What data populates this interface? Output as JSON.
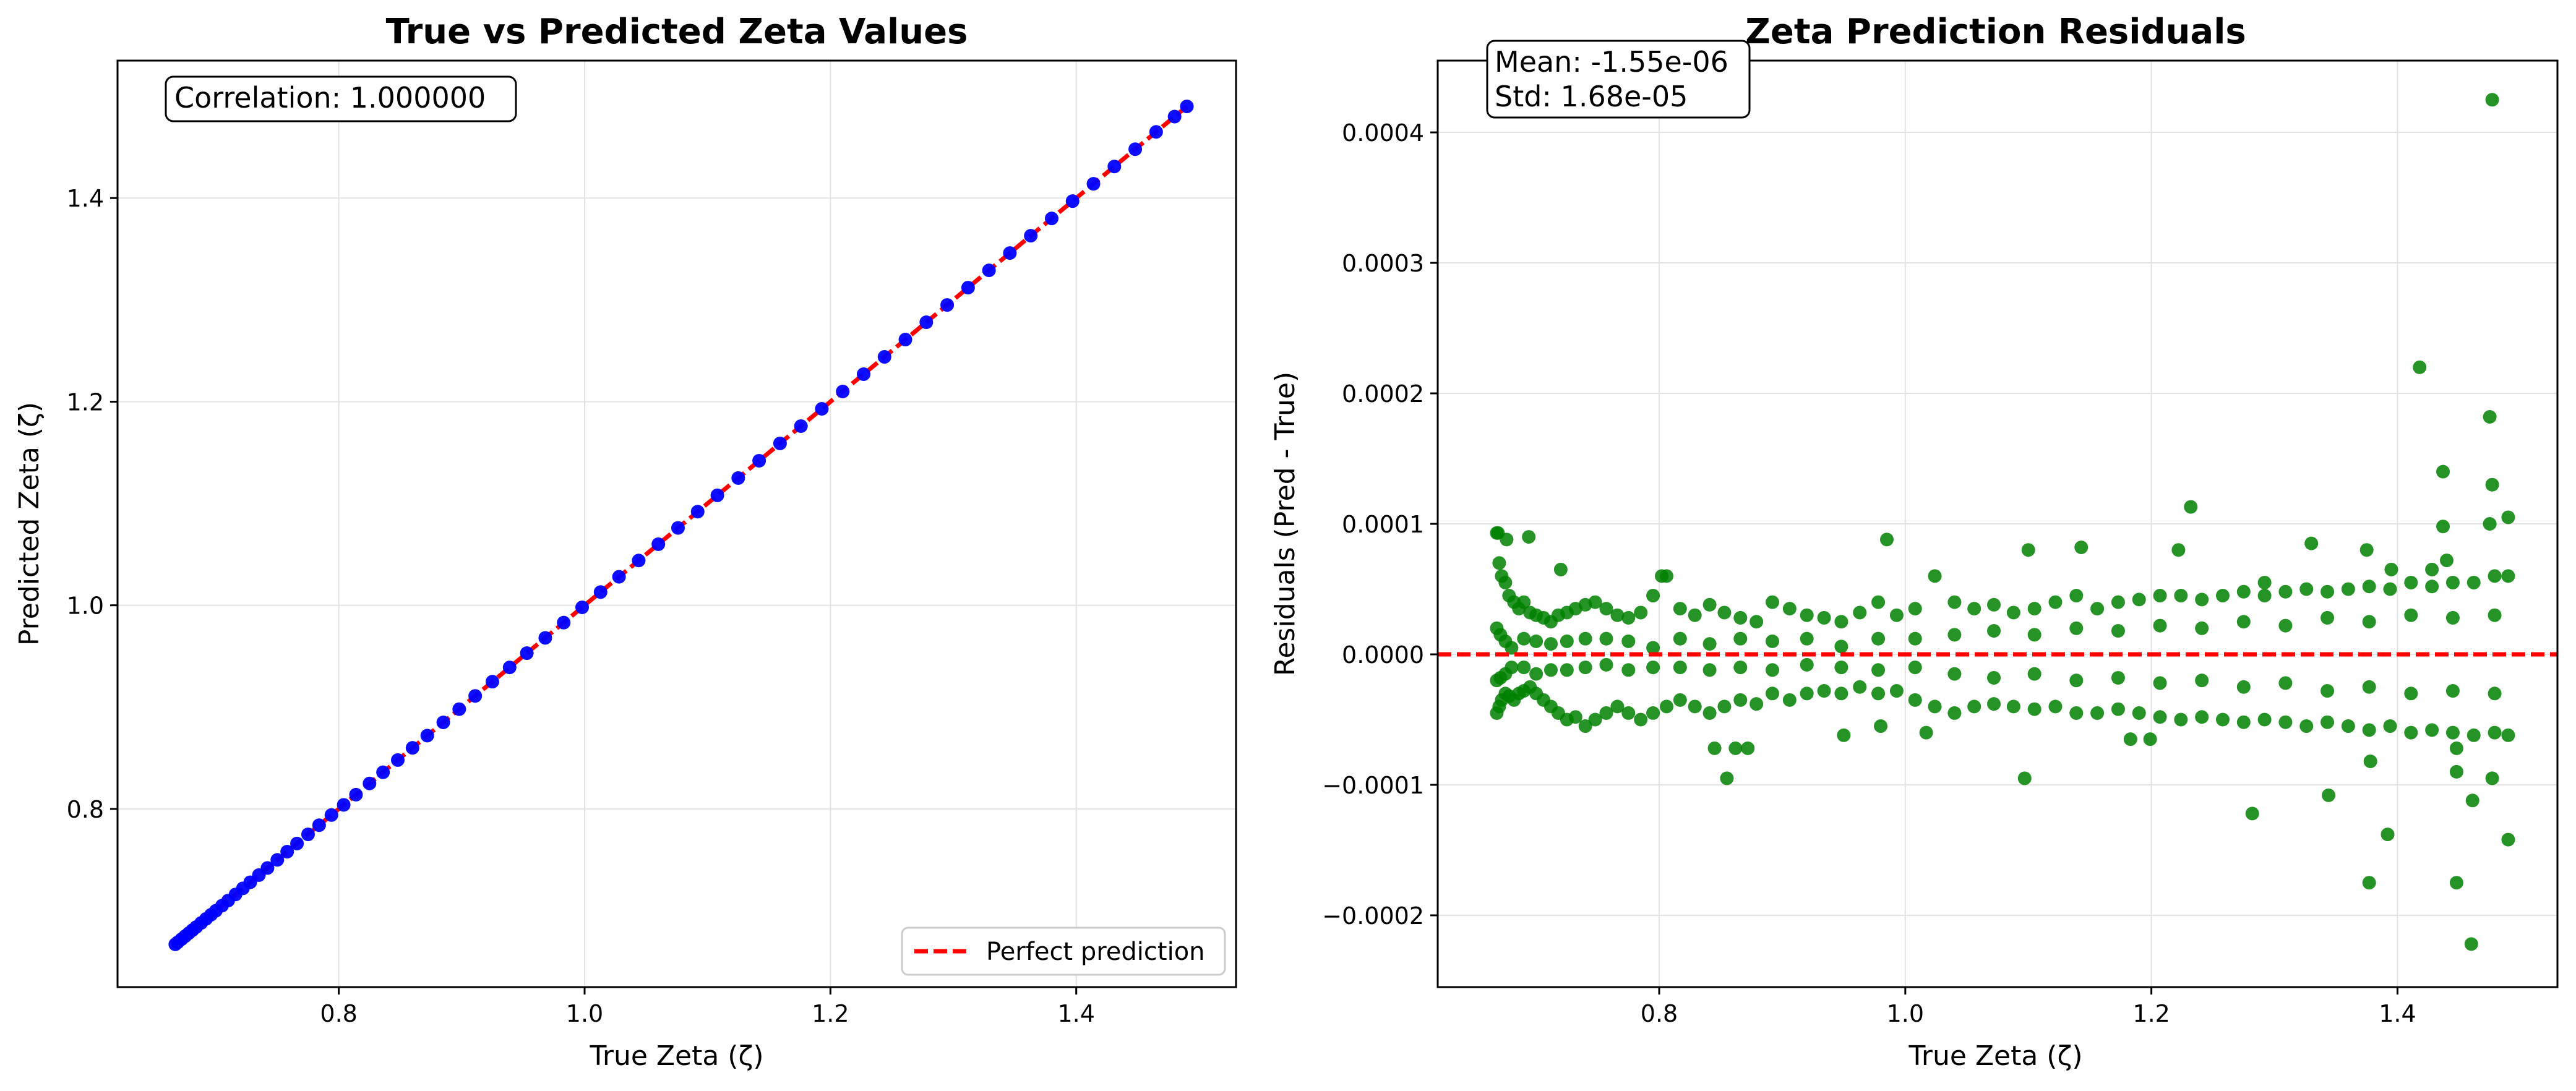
{
  "chart_data": [
    {
      "type": "scatter",
      "title": "True vs Predicted Zeta Values",
      "xlabel": "True Zeta (ζ)",
      "ylabel": "Predicted Zeta (ζ)",
      "xlim": [
        0.62,
        1.53
      ],
      "ylim": [
        0.625,
        1.535
      ],
      "xticks": [
        0.8,
        1.0,
        1.2,
        1.4
      ],
      "xtick_labels": [
        "0.8",
        "1.0",
        "1.2",
        "1.4"
      ],
      "yticks": [
        0.8,
        1.0,
        1.2,
        1.4
      ],
      "ytick_labels": [
        "0.8",
        "1.0",
        "1.2",
        "1.4"
      ],
      "grid": true,
      "annotation": "Correlation: 1.000000",
      "legend": {
        "position": "lower-right",
        "entries": [
          "Perfect prediction"
        ]
      },
      "series": [
        {
          "color": "#0000ff",
          "x": [
            0.667,
            0.669,
            0.672,
            0.675,
            0.678,
            0.681,
            0.684,
            0.688,
            0.692,
            0.696,
            0.7,
            0.705,
            0.71,
            0.716,
            0.722,
            0.728,
            0.735,
            0.742,
            0.75,
            0.758,
            0.766,
            0.775,
            0.784,
            0.794,
            0.804,
            0.814,
            0.825,
            0.836,
            0.848,
            0.86,
            0.872,
            0.885,
            0.898,
            0.911,
            0.925,
            0.939,
            0.953,
            0.968,
            0.983,
            0.998,
            1.013,
            1.028,
            1.044,
            1.06,
            1.076,
            1.092,
            1.108,
            1.125,
            1.142,
            1.159,
            1.176,
            1.193,
            1.21,
            1.227,
            1.244,
            1.261,
            1.278,
            1.295,
            1.312,
            1.329,
            1.346,
            1.363,
            1.38,
            1.397,
            1.414,
            1.431,
            1.448,
            1.465,
            1.48,
            1.49
          ],
          "y": [
            0.667,
            0.669,
            0.672,
            0.675,
            0.678,
            0.681,
            0.684,
            0.688,
            0.692,
            0.696,
            0.7,
            0.705,
            0.71,
            0.716,
            0.722,
            0.728,
            0.735,
            0.742,
            0.75,
            0.758,
            0.766,
            0.775,
            0.784,
            0.794,
            0.804,
            0.814,
            0.825,
            0.836,
            0.848,
            0.86,
            0.872,
            0.885,
            0.898,
            0.911,
            0.925,
            0.939,
            0.953,
            0.968,
            0.983,
            0.998,
            1.013,
            1.028,
            1.044,
            1.06,
            1.076,
            1.092,
            1.108,
            1.125,
            1.142,
            1.159,
            1.176,
            1.193,
            1.21,
            1.227,
            1.244,
            1.261,
            1.278,
            1.295,
            1.312,
            1.329,
            1.346,
            1.363,
            1.38,
            1.397,
            1.414,
            1.431,
            1.448,
            1.465,
            1.48,
            1.49
          ]
        },
        {
          "name": "Perfect prediction",
          "color": "#ff0000",
          "style": "dashed-line",
          "x": [
            0.665,
            1.49
          ],
          "y": [
            0.665,
            1.49
          ]
        }
      ]
    },
    {
      "type": "scatter",
      "title": "Zeta Prediction Residuals",
      "xlabel": "True Zeta (ζ)",
      "ylabel": "Residuals (Pred - True)",
      "xlim": [
        0.62,
        1.53
      ],
      "ylim": [
        -0.000255,
        0.000455
      ],
      "xticks": [
        0.8,
        1.0,
        1.2,
        1.4
      ],
      "xtick_labels": [
        "0.8",
        "1.0",
        "1.2",
        "1.4"
      ],
      "yticks": [
        -0.0002,
        -0.0001,
        0.0,
        0.0001,
        0.0002,
        0.0003,
        0.0004
      ],
      "ytick_labels": [
        "−0.0002",
        "−0.0001",
        "0.0000",
        "0.0001",
        "0.0002",
        "0.0003",
        "0.0004"
      ],
      "grid": true,
      "annotation_lines": [
        "Mean: -1.55e-06",
        "Std: 1.68e-05"
      ],
      "reference_line": {
        "y": 0.0,
        "color": "#ff0000",
        "style": "dashed"
      },
      "series": [
        {
          "color": "#008000",
          "x": [
            0.668,
            0.67,
            0.672,
            0.675,
            0.678,
            0.682,
            0.686,
            0.69,
            0.695,
            0.7,
            0.706,
            0.712,
            0.718,
            0.725,
            0.732,
            0.74,
            0.748,
            0.757,
            0.766,
            0.775,
            0.785,
            0.795,
            0.806,
            0.817,
            0.829,
            0.841,
            0.853,
            0.866,
            0.879,
            0.892,
            0.906,
            0.92,
            0.934,
            0.948,
            0.963,
            0.978,
            0.993,
            1.008,
            1.024,
            1.04,
            1.056,
            1.072,
            1.088,
            1.105,
            1.122,
            1.139,
            1.156,
            1.173,
            1.19,
            1.207,
            1.224,
            1.241,
            1.258,
            1.275,
            1.292,
            1.309,
            1.326,
            1.343,
            1.36,
            1.377,
            1.394,
            1.411,
            1.428,
            1.445,
            1.462,
            1.479,
            1.49,
            0.668,
            0.67,
            0.672,
            0.675,
            0.678,
            0.682,
            0.686,
            0.69,
            0.695,
            0.7,
            0.706,
            0.712,
            0.718,
            0.725,
            0.732,
            0.74,
            0.748,
            0.757,
            0.766,
            0.775,
            0.785,
            0.795,
            0.806,
            0.817,
            0.829,
            0.841,
            0.853,
            0.866,
            0.879,
            0.892,
            0.906,
            0.92,
            0.934,
            0.948,
            0.963,
            0.978,
            0.993,
            1.008,
            1.024,
            1.04,
            1.056,
            1.072,
            1.088,
            1.105,
            1.122,
            1.139,
            1.156,
            1.173,
            1.19,
            1.207,
            1.224,
            1.241,
            1.258,
            1.275,
            1.292,
            1.309,
            1.326,
            1.343,
            1.36,
            1.377,
            1.394,
            1.411,
            1.428,
            1.445,
            1.462,
            1.479,
            1.49,
            0.668,
            0.671,
            0.675,
            0.68,
            0.69,
            0.7,
            0.712,
            0.725,
            0.74,
            0.757,
            0.775,
            0.795,
            0.817,
            0.841,
            0.866,
            0.892,
            0.92,
            0.948,
            0.978,
            1.008,
            1.04,
            1.072,
            1.105,
            1.139,
            1.173,
            1.207,
            1.241,
            1.275,
            1.309,
            1.343,
            1.377,
            1.411,
            1.445,
            1.479,
            0.668,
            0.671,
            0.675,
            0.68,
            0.69,
            0.7,
            0.712,
            0.725,
            0.74,
            0.757,
            0.775,
            0.795,
            0.817,
            0.841,
            0.866,
            0.892,
            0.92,
            0.948,
            0.978,
            1.008,
            1.04,
            1.072,
            1.105,
            1.139,
            1.173,
            1.207,
            1.241,
            1.275,
            1.309,
            1.343,
            1.377,
            1.411,
            1.445,
            1.479,
            0.669,
            0.676,
            0.694,
            0.72,
            0.802,
            0.985,
            1.1,
            1.143,
            1.222,
            1.232,
            1.33,
            1.375,
            1.395,
            1.428,
            1.437,
            1.477,
            1.49,
            1.292,
            1.44,
            1.475,
            0.845,
            0.855,
            0.862,
            0.872,
            0.95,
            0.98,
            1.017,
            1.097,
            1.183,
            1.199,
            1.282,
            1.344,
            1.377,
            1.392,
            1.448,
            1.461,
            1.49,
            1.418,
            1.437,
            1.475,
            1.477,
            1.477,
            1.448,
            1.378,
            1.46,
            1.448
          ],
          "y": [
            9.3e-05,
            7e-05,
            6e-05,
            5.5e-05,
            4.5e-05,
            4e-05,
            3.5e-05,
            4e-05,
            3.2e-05,
            3e-05,
            2.8e-05,
            2.5e-05,
            3e-05,
            3.2e-05,
            3.5e-05,
            3.8e-05,
            4e-05,
            3.5e-05,
            3e-05,
            2.8e-05,
            3.2e-05,
            4.5e-05,
            6e-05,
            3.5e-05,
            3e-05,
            3.8e-05,
            3.2e-05,
            2.8e-05,
            2.5e-05,
            4e-05,
            3.5e-05,
            3e-05,
            2.8e-05,
            2.5e-05,
            3.2e-05,
            4e-05,
            3e-05,
            3.5e-05,
            6e-05,
            4e-05,
            3.5e-05,
            3.8e-05,
            3.2e-05,
            3.5e-05,
            4e-05,
            4.5e-05,
            3.5e-05,
            4e-05,
            4.2e-05,
            4.5e-05,
            4.5e-05,
            4.2e-05,
            4.5e-05,
            4.8e-05,
            4.5e-05,
            4.8e-05,
            5e-05,
            4.8e-05,
            5e-05,
            5.2e-05,
            5e-05,
            5.5e-05,
            5.2e-05,
            5.5e-05,
            5.5e-05,
            6e-05,
            6e-05,
            -4.5e-05,
            -4e-05,
            -3.5e-05,
            -3e-05,
            -3.2e-05,
            -3.5e-05,
            -3e-05,
            -2.8e-05,
            -2.5e-05,
            -3e-05,
            -3.5e-05,
            -4e-05,
            -4.5e-05,
            -5e-05,
            -4.8e-05,
            -5.5e-05,
            -5e-05,
            -4.5e-05,
            -4e-05,
            -4.5e-05,
            -5e-05,
            -4.5e-05,
            -4e-05,
            -3.5e-05,
            -4e-05,
            -4.5e-05,
            -4e-05,
            -3.5e-05,
            -3.8e-05,
            -3e-05,
            -3.5e-05,
            -3e-05,
            -2.8e-05,
            -3e-05,
            -2.5e-05,
            -3e-05,
            -2.8e-05,
            -3.5e-05,
            -4e-05,
            -4.5e-05,
            -4e-05,
            -3.8e-05,
            -4e-05,
            -4.2e-05,
            -4e-05,
            -4.5e-05,
            -4.5e-05,
            -4.2e-05,
            -4.5e-05,
            -4.8e-05,
            -5e-05,
            -4.8e-05,
            -5e-05,
            -5.2e-05,
            -5e-05,
            -5.2e-05,
            -5.5e-05,
            -5.2e-05,
            -5.5e-05,
            -5.8e-05,
            -5.5e-05,
            -6e-05,
            -5.8e-05,
            -6e-05,
            -6.2e-05,
            -6e-05,
            -6.2e-05,
            2e-05,
            1.5e-05,
            1e-05,
            5e-06,
            -1e-05,
            -1.5e-05,
            8e-06,
            -1.2e-05,
            1.2e-05,
            -8e-06,
            1e-05,
            5e-06,
            -1e-05,
            8e-06,
            -1e-05,
            1e-05,
            -8e-06,
            6e-06,
            1.2e-05,
            -1e-05,
            1.5e-05,
            1.8e-05,
            -1.5e-05,
            2e-05,
            -1.8e-05,
            2.2e-05,
            -2e-05,
            2.5e-05,
            -2.2e-05,
            2.8e-05,
            -2.5e-05,
            3e-05,
            -2.8e-05,
            3e-05,
            -2e-05,
            -1.8e-05,
            -1.5e-05,
            -1e-05,
            1.2e-05,
            1e-05,
            -1.2e-05,
            1e-05,
            -1e-05,
            1.2e-05,
            -1.2e-05,
            -1e-05,
            1.2e-05,
            -1.2e-05,
            1.2e-05,
            -1.2e-05,
            1.2e-05,
            -1e-05,
            -1.2e-05,
            1.2e-05,
            -1.5e-05,
            -1.8e-05,
            1.5e-05,
            -2e-05,
            1.8e-05,
            -2.2e-05,
            2e-05,
            -2.5e-05,
            2.2e-05,
            -2.8e-05,
            2.5e-05,
            -3e-05,
            2.8e-05,
            -3e-05,
            9.3e-05,
            8.8e-05,
            9e-05,
            6.5e-05,
            6e-05,
            8.8e-05,
            8e-05,
            8.2e-05,
            8e-05,
            0.000113,
            8.5e-05,
            8e-05,
            6.5e-05,
            6.5e-05,
            9.8e-05,
            0.00013,
            0.000105,
            5.5e-05,
            7.2e-05,
            0.0001,
            -7.2e-05,
            -9.5e-05,
            -7.2e-05,
            -7.2e-05,
            -6.2e-05,
            -5.5e-05,
            -6e-05,
            -9.5e-05,
            -6.5e-05,
            -6.5e-05,
            -0.000122,
            -0.000108,
            -0.000175,
            -0.000138,
            -0.000175,
            -0.000112,
            -0.000142,
            0.00022,
            0.00014,
            0.000182,
            0.000425,
            -9.5e-05,
            -7.2e-05,
            -8.2e-05,
            -0.000222,
            -9e-05
          ]
        }
      ]
    }
  ]
}
